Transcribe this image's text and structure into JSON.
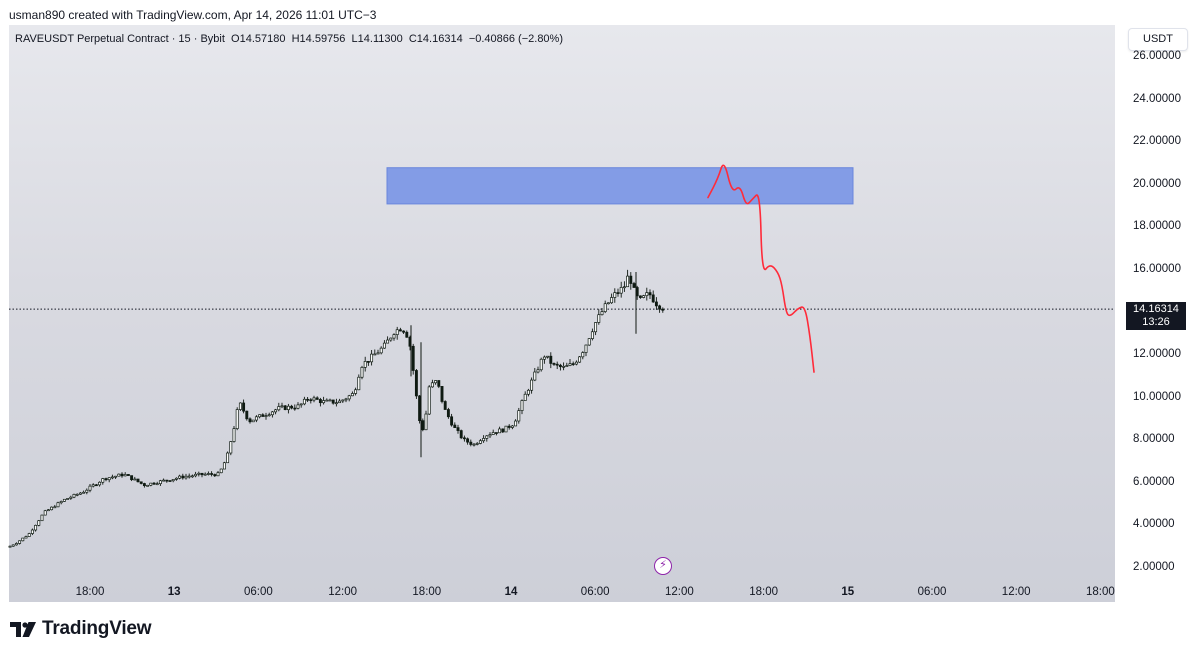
{
  "header": {
    "created_line": "usman890 created with TradingView.com, Apr 14, 2026 11:01 UTC−3"
  },
  "legend": {
    "symbol": "RAVEUSDT Perpetual Contract · 15 · Bybit",
    "open": "O14.57180",
    "high": "H14.59756",
    "low": "L14.11300",
    "close": "C14.16314",
    "change": "−0.40866 (−2.80%)"
  },
  "currency_label": "USDT",
  "last_price": {
    "value": "14.16314",
    "countdown": "13:26"
  },
  "brand": {
    "name": "TradingView"
  },
  "colors": {
    "up": "#0f1a12",
    "down": "#0f1a12",
    "zone": "#7b96e6",
    "projection": "#ff2b3a"
  },
  "icons": {
    "lightning": "lightning-icon",
    "logo": "tradingview-logo-icon"
  },
  "chart_data": {
    "type": "candlestick",
    "y_axis": {
      "ticks": [
        "26.00000",
        "24.00000",
        "22.00000",
        "20.00000",
        "18.00000",
        "16.00000",
        "14.00000",
        "12.00000",
        "10.00000",
        "8.00000",
        "6.00000",
        "4.00000",
        "2.00000"
      ],
      "range": [
        1.2,
        26.3
      ]
    },
    "x_axis": {
      "ticks": [
        {
          "label": "18:00",
          "bold": false
        },
        {
          "label": "13",
          "bold": true
        },
        {
          "label": "06:00",
          "bold": false
        },
        {
          "label": "12:00",
          "bold": false
        },
        {
          "label": "18:00",
          "bold": false
        },
        {
          "label": "14",
          "bold": true
        },
        {
          "label": "06:00",
          "bold": false
        },
        {
          "label": "12:00",
          "bold": false
        },
        {
          "label": "18:00",
          "bold": false
        },
        {
          "label": "15",
          "bold": true
        },
        {
          "label": "06:00",
          "bold": false
        },
        {
          "label": "12:00",
          "bold": false
        },
        {
          "label": "18:00",
          "bold": false
        }
      ]
    },
    "price_path_waypoints": [
      [
        0,
        3.0
      ],
      [
        8,
        3.2
      ],
      [
        20,
        3.6
      ],
      [
        35,
        4.6
      ],
      [
        55,
        5.2
      ],
      [
        75,
        5.6
      ],
      [
        95,
        6.2
      ],
      [
        115,
        6.4
      ],
      [
        135,
        5.9
      ],
      [
        155,
        6.1
      ],
      [
        175,
        6.3
      ],
      [
        195,
        6.4
      ],
      [
        210,
        6.4
      ],
      [
        218,
        7.2
      ],
      [
        226,
        8.8
      ],
      [
        230,
        9.8
      ],
      [
        240,
        8.9
      ],
      [
        255,
        9.2
      ],
      [
        270,
        9.5
      ],
      [
        290,
        9.6
      ],
      [
        300,
        10.0
      ],
      [
        315,
        9.8
      ],
      [
        330,
        9.8
      ],
      [
        345,
        10.2
      ],
      [
        352,
        11.5
      ],
      [
        360,
        11.8
      ],
      [
        375,
        12.4
      ],
      [
        385,
        13.1
      ],
      [
        393,
        13.3
      ],
      [
        400,
        12.8
      ],
      [
        405,
        11.0
      ],
      [
        410,
        9.0
      ],
      [
        415,
        8.4
      ],
      [
        420,
        10.5
      ],
      [
        428,
        10.8
      ],
      [
        435,
        9.5
      ],
      [
        445,
        8.6
      ],
      [
        455,
        8.0
      ],
      [
        465,
        7.8
      ],
      [
        475,
        8.2
      ],
      [
        485,
        8.4
      ],
      [
        495,
        8.5
      ],
      [
        505,
        8.8
      ],
      [
        515,
        10.0
      ],
      [
        525,
        11.0
      ],
      [
        535,
        12.0
      ],
      [
        545,
        11.5
      ],
      [
        555,
        11.4
      ],
      [
        565,
        11.6
      ],
      [
        575,
        12.3
      ],
      [
        585,
        13.4
      ],
      [
        595,
        14.2
      ],
      [
        605,
        14.8
      ],
      [
        615,
        15.2
      ],
      [
        620,
        15.8
      ],
      [
        625,
        15.0
      ],
      [
        630,
        14.5
      ],
      [
        640,
        14.9
      ],
      [
        648,
        14.4
      ],
      [
        655,
        14.2
      ]
    ],
    "zone": {
      "y_top": 20.8,
      "y_bottom": 19.1
    },
    "projection_path": [
      [
        708,
        19.4
      ],
      [
        718,
        20.3
      ],
      [
        724,
        21.2
      ],
      [
        732,
        19.6
      ],
      [
        740,
        20.0
      ],
      [
        746,
        19.0
      ],
      [
        752,
        19.3
      ],
      [
        760,
        19.7
      ],
      [
        762,
        15.8
      ],
      [
        770,
        16.3
      ],
      [
        778,
        15.9
      ],
      [
        782,
        15.3
      ],
      [
        786,
        14.0
      ],
      [
        790,
        13.8
      ],
      [
        798,
        14.2
      ],
      [
        805,
        14.3
      ],
      [
        810,
        12.9
      ],
      [
        814,
        11.2
      ]
    ],
    "last_price_line": 14.16
  }
}
